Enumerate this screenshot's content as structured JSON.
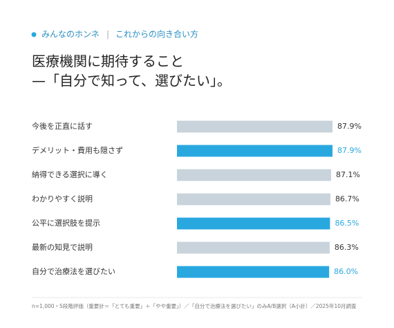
{
  "header": {
    "tag": "みんなのホンネ",
    "separator": "|",
    "section": "これからの向き合い方"
  },
  "chart_data": {
    "type": "hbar",
    "title_lines": [
      "医療機関に期待すること",
      "—「自分で知って、選びたい」。"
    ],
    "categories": [
      "今後を正直に話す",
      "デメリット・費用も隠さず",
      "納得できる選択に導く",
      "わかりやすく説明",
      "公平に選択肢を提示",
      "最新の知見で説明",
      "自分で治療法を選びたい"
    ],
    "values": [
      87.9,
      87.9,
      87.1,
      86.7,
      86.5,
      86.3,
      86.0
    ],
    "value_labels": [
      "87.9%",
      "87.9%",
      "87.1%",
      "86.7%",
      "86.5%",
      "86.3%",
      "86.0%"
    ],
    "colors": [
      "#c9d3dc",
      "#29a8e0",
      "#c9d3dc",
      "#c9d3dc",
      "#29a8e0",
      "#c9d3dc",
      "#29a8e0"
    ],
    "value_label_colors": [
      "#333333",
      "#29a8e0",
      "#333333",
      "#333333",
      "#29a8e0",
      "#333333",
      "#29a8e0"
    ],
    "xlim": [
      0,
      100
    ]
  },
  "footnote": "n=1,000・5段階評価（重要計＝「とても重要」＋「やや重要」）／「自分で治療法を選びたい」のみA/B選択（A小計）／2025年10月調査"
}
